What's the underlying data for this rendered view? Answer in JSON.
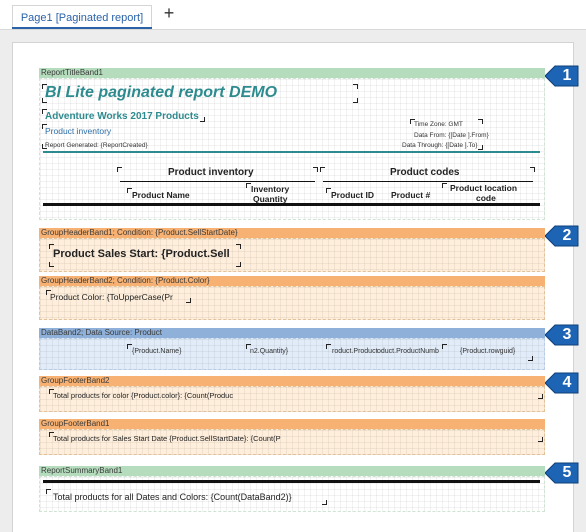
{
  "tabs": [
    {
      "label": "Page1 [Paginated report]"
    }
  ],
  "add_tab_glyph": "+",
  "bands": {
    "report_title": {
      "label": "ReportTitleBand1"
    },
    "group_header_1": {
      "label": "GroupHeaderBand1; Condition: {Product.SellStartDate}"
    },
    "group_header_2": {
      "label": "GroupHeaderBand2; Condition: {Product.Color}"
    },
    "data": {
      "label": "DataBand2; Data Source: Product"
    },
    "group_footer_2": {
      "label": "GroupFooterBand2"
    },
    "group_footer_1": {
      "label": "GroupFooterBand1"
    },
    "report_summary": {
      "label": "ReportSummaryBand1"
    }
  },
  "report_title": {
    "heading": "BI Lite paginated report DEMO",
    "subheading": "Adventure Works 2017 Products",
    "product_inventory": "Product inventory",
    "report_generated": "Report Generated: {ReportCreated}",
    "time_zone": "Time Zone: GMT",
    "data_from": "Data From: {[Date ].From}",
    "data_through": "Data Through: {[Date ].To}",
    "col_group_inventory": "Product inventory",
    "col_group_codes": "Product codes",
    "col_product_name": "Product Name",
    "col_inventory_qty_1": "Inventory",
    "col_inventory_qty_2": "Quantity",
    "col_product_id": "Product ID",
    "col_product_num": "Product #",
    "col_location_1": "Product location",
    "col_location_2": "code"
  },
  "group_header_1": {
    "text": "Product Sales Start: {Product.Sell"
  },
  "group_header_2": {
    "text": "Product Color: {ToUpperCase(Pr"
  },
  "data_band": {
    "name": "{Product.Name}",
    "qty": "n2.Quantity}",
    "product_id": "roduct.Product",
    "product_num": "oduct.ProductNumb",
    "rowguid": "{Product.rowguid}"
  },
  "group_footer_2": {
    "text": "Total products for color {Product.color}: {Count(Produc"
  },
  "group_footer_1": {
    "text": "Total products for Sales Start Date {Product.SellStartDate}: {Count(P"
  },
  "report_summary": {
    "text": "Total products for all Dates and Colors: {Count(DataBand2)}"
  },
  "callouts": [
    "1",
    "2",
    "3",
    "4",
    "5"
  ],
  "colors": {
    "accent": "#2a62a8",
    "band_green": "#b5dcbd",
    "band_orange": "#f7b273",
    "band_blue": "#8fb0d8",
    "teal_text": "#2d8b8f",
    "callout_blue": "#1d64b5"
  }
}
